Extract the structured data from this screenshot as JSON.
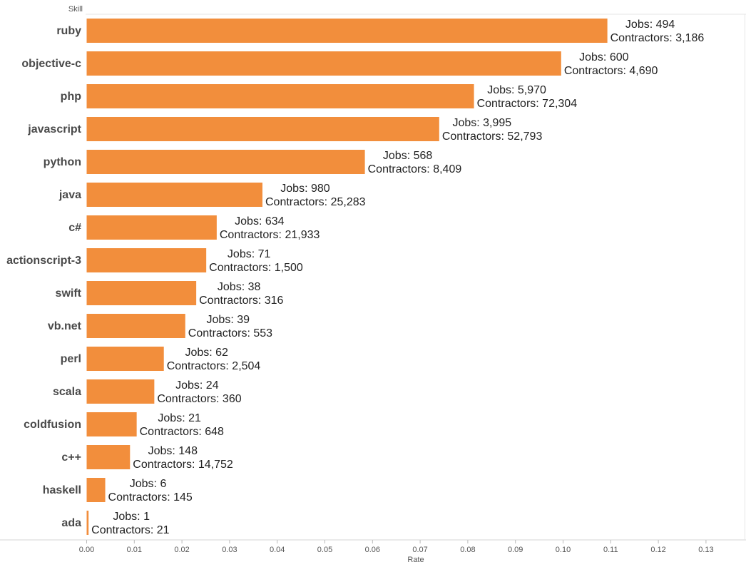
{
  "chart_data": {
    "type": "bar",
    "orientation": "horizontal",
    "y_header": "Skill",
    "xlabel": "Rate",
    "xlim": [
      -0.0003,
      0.137
    ],
    "x_ticks": [
      "0.00",
      "0.01",
      "0.02",
      "0.03",
      "0.04",
      "0.05",
      "0.06",
      "0.07",
      "0.08",
      "0.09",
      "0.10",
      "0.11",
      "0.12",
      "0.13"
    ],
    "x_tick_values": [
      0,
      0.01,
      0.02,
      0.03,
      0.04,
      0.05,
      0.06,
      0.07,
      0.08,
      0.09,
      0.1,
      0.11,
      0.12,
      0.13
    ],
    "grid": false,
    "bar_color": "#F28E3C",
    "categories": [
      "ruby",
      "objective-c",
      "php",
      "javascript",
      "python",
      "java",
      "c#",
      "actionscript-3",
      "swift",
      "vb.net",
      "perl",
      "scala",
      "coldfusion",
      "c++",
      "haskell",
      "ada"
    ],
    "values": [
      0.1093,
      0.0996,
      0.0813,
      0.074,
      0.0584,
      0.0369,
      0.0273,
      0.0251,
      0.023,
      0.0207,
      0.0162,
      0.0142,
      0.0105,
      0.0091,
      0.0039,
      0.0004
    ],
    "labels": [
      {
        "jobs": "Jobs: 494",
        "contractors": "Contractors: 3,186"
      },
      {
        "jobs": "Jobs: 600",
        "contractors": "Contractors: 4,690"
      },
      {
        "jobs": "Jobs: 5,970",
        "contractors": "Contractors: 72,304"
      },
      {
        "jobs": "Jobs: 3,995",
        "contractors": "Contractors: 52,793"
      },
      {
        "jobs": "Jobs: 568",
        "contractors": "Contractors: 8,409"
      },
      {
        "jobs": "Jobs: 980",
        "contractors": "Contractors: 25,283"
      },
      {
        "jobs": "Jobs: 634",
        "contractors": "Contractors: 21,933"
      },
      {
        "jobs": "Jobs: 71",
        "contractors": "Contractors: 1,500"
      },
      {
        "jobs": "Jobs: 38",
        "contractors": "Contractors: 316"
      },
      {
        "jobs": "Jobs: 39",
        "contractors": "Contractors: 553"
      },
      {
        "jobs": "Jobs: 62",
        "contractors": "Contractors: 2,504"
      },
      {
        "jobs": "Jobs: 24",
        "contractors": "Contractors: 360"
      },
      {
        "jobs": "Jobs: 21",
        "contractors": "Contractors: 648"
      },
      {
        "jobs": "Jobs: 148",
        "contractors": "Contractors: 14,752"
      },
      {
        "jobs": "Jobs: 6",
        "contractors": "Contractors: 145"
      },
      {
        "jobs": "Jobs: 1",
        "contractors": "Contractors: 21"
      }
    ]
  }
}
